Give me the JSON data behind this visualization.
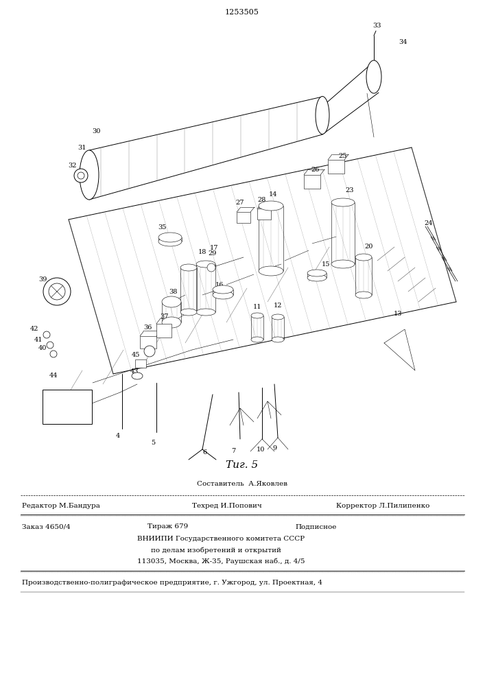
{
  "patent_number": "1253505",
  "fig_label": "Τиг. 5",
  "background_color": "#ffffff",
  "sestavitel": "Составитель  А.Яковлев",
  "redaktor": "Редактор М.Бандура",
  "tehred": "Техред И.Попович",
  "korrektor": "Корректор Л.Пилипенко",
  "zakaz": "Заказ 4650/4",
  "tirazh": "Тираж 679",
  "podpisnoe": "Подписное",
  "vniiipi_line1": "ВНИИПИ Государственного комитета СССР",
  "vniiipi_line2": "по делам изобретений и открытий",
  "vniiipi_line3": "113035, Москва, Ж-35, Раушская наб., д. 4/5",
  "production_line": "Производственно-полиграфическое предприятие, г. Ужгород, ул. Проектная, 4"
}
